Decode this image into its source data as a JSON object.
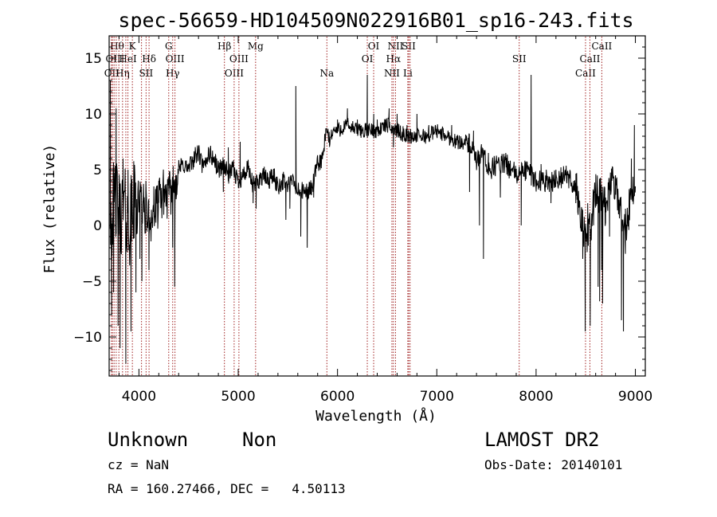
{
  "chart_data": {
    "type": "line",
    "title": "spec-56659-HD104509N022916B01_sp16-243.fits",
    "xlabel": "Wavelength (Å)",
    "ylabel": "Flux (relative)",
    "xlim": [
      3700,
      9100
    ],
    "ylim": [
      -13.5,
      17.0
    ],
    "x_ticks": [
      4000,
      5000,
      6000,
      7000,
      8000,
      9000
    ],
    "x_tick_labels": [
      "4000",
      "5000",
      "6000",
      "7000",
      "8000",
      "9000"
    ],
    "y_ticks": [
      -10,
      -5,
      0,
      5,
      10,
      15
    ],
    "y_tick_labels": [
      "−10",
      "−5",
      "0",
      "5",
      "10",
      "15"
    ],
    "grid": false,
    "line_color": "#000000",
    "line_marker_color": "#a02020",
    "spectrum_continuum": {
      "x": [
        3700,
        3730,
        3760,
        3800,
        3850,
        3900,
        3950,
        4000,
        4050,
        4100,
        4150,
        4200,
        4250,
        4300,
        4350,
        4400,
        4450,
        4500,
        4550,
        4600,
        4650,
        4700,
        4750,
        4800,
        4850,
        4900,
        4950,
        5000,
        5050,
        5100,
        5150,
        5200,
        5250,
        5300,
        5350,
        5400,
        5450,
        5500,
        5550,
        5600,
        5650,
        5700,
        5750,
        5800,
        5850,
        5880,
        5900,
        5920,
        5950,
        6000,
        6100,
        6200,
        6300,
        6400,
        6500,
        6600,
        6700,
        6800,
        6900,
        7000,
        7100,
        7200,
        7300,
        7350,
        7400,
        7450,
        7500,
        7550,
        7600,
        7700,
        7800,
        7900,
        8000,
        8100,
        8200,
        8300,
        8350,
        8400,
        8450,
        8500,
        8550,
        8600,
        8650,
        8700,
        8750,
        8800,
        8850,
        8900,
        8950,
        9000
      ],
      "y": [
        2.0,
        1.0,
        2.5,
        1.0,
        1.5,
        0.0,
        2.0,
        2.5,
        1.5,
        0.5,
        1.0,
        2.0,
        3.0,
        2.5,
        3.5,
        5.0,
        5.5,
        5.0,
        6.0,
        6.5,
        5.0,
        6.5,
        6.0,
        5.0,
        5.5,
        4.5,
        5.0,
        4.0,
        4.5,
        5.0,
        3.5,
        4.0,
        4.5,
        4.0,
        4.5,
        3.5,
        4.0,
        3.5,
        4.0,
        3.0,
        3.0,
        3.0,
        3.5,
        5.5,
        6.0,
        8.0,
        8.5,
        7.5,
        8.5,
        8.5,
        9.0,
        8.5,
        8.5,
        8.5,
        9.0,
        8.5,
        8.0,
        8.0,
        8.0,
        8.5,
        8.0,
        7.5,
        7.5,
        7.0,
        5.5,
        6.5,
        5.5,
        5.0,
        5.5,
        5.5,
        4.5,
        5.0,
        4.0,
        4.0,
        4.0,
        4.5,
        4.0,
        3.5,
        1.0,
        -1.5,
        0.0,
        3.0,
        2.5,
        1.5,
        4.0,
        3.0,
        2.0,
        -1.0,
        2.5,
        3.5
      ]
    },
    "spectrum_features": [
      {
        "x": 3712,
        "y": 13.0
      },
      {
        "x": 3725,
        "y": -8.0
      },
      {
        "x": 3745,
        "y": -6.0
      },
      {
        "x": 3770,
        "y": 10.5
      },
      {
        "x": 3790,
        "y": -9.0
      },
      {
        "x": 3810,
        "y": -11.0
      },
      {
        "x": 3840,
        "y": 6.0
      },
      {
        "x": 3868,
        "y": -12.4
      },
      {
        "x": 3890,
        "y": 5.0
      },
      {
        "x": 3920,
        "y": -9.5
      },
      {
        "x": 3970,
        "y": -6.0
      },
      {
        "x": 4010,
        "y": -3.0
      },
      {
        "x": 4030,
        "y": -5.0
      },
      {
        "x": 4070,
        "y": 4.0
      },
      {
        "x": 4101,
        "y": -4.0
      },
      {
        "x": 4150,
        "y": 3.5
      },
      {
        "x": 4200,
        "y": 4.0
      },
      {
        "x": 4340,
        "y": -2.0
      },
      {
        "x": 4360,
        "y": -5.5
      },
      {
        "x": 4380,
        "y": 4.5
      },
      {
        "x": 4850,
        "y": 3.0
      },
      {
        "x": 4900,
        "y": 7.0
      },
      {
        "x": 5020,
        "y": 7.5
      },
      {
        "x": 5150,
        "y": 2.0
      },
      {
        "x": 5180,
        "y": 1.5
      },
      {
        "x": 5480,
        "y": 0.5
      },
      {
        "x": 5520,
        "y": 1.5
      },
      {
        "x": 5580,
        "y": 12.5
      },
      {
        "x": 5630,
        "y": -1.0
      },
      {
        "x": 5695,
        "y": -2.0
      },
      {
        "x": 5760,
        "y": 2.5
      },
      {
        "x": 5800,
        "y": 6.0
      },
      {
        "x": 6000,
        "y": 9.5
      },
      {
        "x": 6100,
        "y": 10.5
      },
      {
        "x": 6200,
        "y": 9.5
      },
      {
        "x": 6300,
        "y": 13.5
      },
      {
        "x": 6365,
        "y": 10.0
      },
      {
        "x": 6400,
        "y": 9.5
      },
      {
        "x": 6480,
        "y": 9.5
      },
      {
        "x": 6520,
        "y": 10.5
      },
      {
        "x": 6563,
        "y": 7.0
      },
      {
        "x": 6600,
        "y": 10.0
      },
      {
        "x": 6700,
        "y": 9.0
      },
      {
        "x": 6800,
        "y": 10.0
      },
      {
        "x": 6920,
        "y": 9.0
      },
      {
        "x": 7050,
        "y": 8.0
      },
      {
        "x": 7150,
        "y": 9.0
      },
      {
        "x": 7250,
        "y": 7.0
      },
      {
        "x": 7300,
        "y": 8.0
      },
      {
        "x": 7330,
        "y": 3.0
      },
      {
        "x": 7370,
        "y": 8.5
      },
      {
        "x": 7430,
        "y": 0.0
      },
      {
        "x": 7470,
        "y": -3.0
      },
      {
        "x": 7520,
        "y": 6.5
      },
      {
        "x": 7640,
        "y": 2.5
      },
      {
        "x": 7700,
        "y": 5.5
      },
      {
        "x": 7850,
        "y": 0.0
      },
      {
        "x": 7900,
        "y": 5.0
      },
      {
        "x": 7950,
        "y": 13.5
      },
      {
        "x": 8050,
        "y": 5.5
      },
      {
        "x": 8150,
        "y": 2.0
      },
      {
        "x": 8200,
        "y": 5.0
      },
      {
        "x": 8300,
        "y": 4.5
      },
      {
        "x": 8400,
        "y": 2.0
      },
      {
        "x": 8470,
        "y": -3.0
      },
      {
        "x": 8495,
        "y": -9.5
      },
      {
        "x": 8520,
        "y": 2.0
      },
      {
        "x": 8545,
        "y": -9.0
      },
      {
        "x": 8580,
        "y": 1.0
      },
      {
        "x": 8625,
        "y": -5.5
      },
      {
        "x": 8640,
        "y": -6.8
      },
      {
        "x": 8660,
        "y": -4.0
      },
      {
        "x": 8670,
        "y": -7.0
      },
      {
        "x": 8700,
        "y": 2.5
      },
      {
        "x": 8740,
        "y": -1.0
      },
      {
        "x": 8800,
        "y": 4.5
      },
      {
        "x": 8830,
        "y": 1.0
      },
      {
        "x": 8860,
        "y": -8.5
      },
      {
        "x": 8880,
        "y": -9.5
      },
      {
        "x": 8900,
        "y": 1.5
      },
      {
        "x": 8960,
        "y": 6.0
      },
      {
        "x": 8990,
        "y": 9.0
      },
      {
        "x": 9000,
        "y": 3.5
      }
    ],
    "line_markers": [
      {
        "x": 3722
      },
      {
        "x": 3734
      },
      {
        "x": 3750
      },
      {
        "x": 3771
      },
      {
        "x": 3798
      },
      {
        "x": 3835
      },
      {
        "x": 3868
      },
      {
        "x": 3889
      },
      {
        "x": 3934
      },
      {
        "x": 4026
      },
      {
        "x": 4072
      },
      {
        "x": 4102
      },
      {
        "x": 4300
      },
      {
        "x": 4340
      },
      {
        "x": 4363
      },
      {
        "x": 4861
      },
      {
        "x": 4959
      },
      {
        "x": 5007
      },
      {
        "x": 5175
      },
      {
        "x": 5893
      },
      {
        "x": 6300
      },
      {
        "x": 6364
      },
      {
        "x": 6548
      },
      {
        "x": 6563
      },
      {
        "x": 6584
      },
      {
        "x": 6708
      },
      {
        "x": 6717
      },
      {
        "x": 6731
      },
      {
        "x": 7830
      },
      {
        "x": 8498
      },
      {
        "x": 8542
      },
      {
        "x": 8662
      }
    ],
    "line_labels": [
      {
        "text": "Hθ",
        "x": 3780,
        "row": 1
      },
      {
        "text": "K",
        "x": 3934,
        "row": 1
      },
      {
        "text": "G",
        "x": 4300,
        "row": 1
      },
      {
        "text": "Hβ",
        "x": 4861,
        "row": 1
      },
      {
        "text": "Mg",
        "x": 5175,
        "row": 1
      },
      {
        "text": "OI",
        "x": 6364,
        "row": 1
      },
      {
        "text": "NII",
        "x": 6584,
        "row": 1
      },
      {
        "text": "SII",
        "x": 6717,
        "row": 1
      },
      {
        "text": "CaII",
        "x": 8662,
        "row": 1
      },
      {
        "text": "OIII",
        "x": 3760,
        "row": 2
      },
      {
        "text": "HeI",
        "x": 3889,
        "row": 2
      },
      {
        "text": "Hδ",
        "x": 4102,
        "row": 2
      },
      {
        "text": "OIII",
        "x": 4363,
        "row": 2
      },
      {
        "text": "OIII",
        "x": 5007,
        "row": 2
      },
      {
        "text": "OI",
        "x": 6300,
        "row": 2
      },
      {
        "text": "Hα",
        "x": 6563,
        "row": 2
      },
      {
        "text": "SII",
        "x": 7830,
        "row": 2
      },
      {
        "text": "CaII",
        "x": 8542,
        "row": 2
      },
      {
        "text": "OII",
        "x": 3727,
        "row": 3
      },
      {
        "text": "Hη",
        "x": 3835,
        "row": 3
      },
      {
        "text": "SII",
        "x": 4072,
        "row": 3
      },
      {
        "text": "Hγ",
        "x": 4340,
        "row": 3
      },
      {
        "text": "OIII",
        "x": 4959,
        "row": 3
      },
      {
        "text": "Na",
        "x": 5893,
        "row": 3
      },
      {
        "text": "NII",
        "x": 6548,
        "row": 3
      },
      {
        "text": "Li",
        "x": 6708,
        "row": 3
      },
      {
        "text": "CaII",
        "x": 8498,
        "row": 3
      }
    ]
  },
  "info": {
    "class": "Unknown",
    "subclass": "Non",
    "survey": "LAMOST DR2",
    "redshift": "cz = NaN",
    "obs_date": "Obs-Date: 20140101",
    "coords": "RA = 160.27466, DEC =   4.50113"
  }
}
